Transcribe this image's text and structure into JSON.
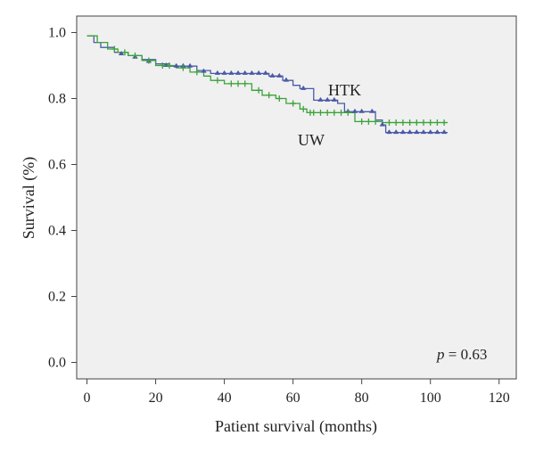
{
  "chart_data": {
    "type": "line",
    "subtype": "kaplan-meier",
    "xlabel": "Patient survival (months)",
    "ylabel": "Survival (%)",
    "xlim": [
      -3,
      125
    ],
    "ylim": [
      -0.05,
      1.05
    ],
    "xticks": [
      0,
      20,
      40,
      60,
      80,
      100,
      120
    ],
    "yticks": [
      0.0,
      0.2,
      0.4,
      0.6,
      0.8,
      1.0
    ],
    "xtick_labels": [
      "0",
      "20",
      "40",
      "60",
      "80",
      "100",
      "120"
    ],
    "ytick_labels": [
      "0.0",
      "0.2",
      "0.4",
      "0.6",
      "0.8",
      "1.0"
    ],
    "background": "#f0f0f0",
    "grid": false,
    "annotation": {
      "italic": "p",
      "text": " = 0.63"
    },
    "series": [
      {
        "name": "HTK",
        "color": "#4a5aa8",
        "censor_marker": "triangle",
        "steps": [
          [
            0,
            0.99
          ],
          [
            2,
            0.97
          ],
          [
            4,
            0.955
          ],
          [
            8,
            0.94
          ],
          [
            12,
            0.93
          ],
          [
            16,
            0.918
          ],
          [
            20,
            0.905
          ],
          [
            24,
            0.898
          ],
          [
            32,
            0.885
          ],
          [
            36,
            0.876
          ],
          [
            53,
            0.868
          ],
          [
            57,
            0.855
          ],
          [
            60,
            0.84
          ],
          [
            62,
            0.83
          ],
          [
            66,
            0.795
          ],
          [
            73,
            0.785
          ],
          [
            75,
            0.76
          ],
          [
            84,
            0.735
          ],
          [
            86,
            0.72
          ],
          [
            87,
            0.697
          ],
          [
            105,
            0.697
          ]
        ],
        "censored": [
          [
            10,
            0.935
          ],
          [
            14,
            0.925
          ],
          [
            18,
            0.912
          ],
          [
            23,
            0.9
          ],
          [
            26,
            0.898
          ],
          [
            28,
            0.898
          ],
          [
            30,
            0.898
          ],
          [
            34,
            0.882
          ],
          [
            38,
            0.876
          ],
          [
            40,
            0.876
          ],
          [
            42,
            0.876
          ],
          [
            44,
            0.876
          ],
          [
            46,
            0.876
          ],
          [
            48,
            0.876
          ],
          [
            50,
            0.876
          ],
          [
            52,
            0.876
          ],
          [
            54,
            0.868
          ],
          [
            56,
            0.868
          ],
          [
            58,
            0.855
          ],
          [
            63,
            0.83
          ],
          [
            68,
            0.795
          ],
          [
            70,
            0.795
          ],
          [
            72,
            0.795
          ],
          [
            76,
            0.76
          ],
          [
            78,
            0.76
          ],
          [
            80,
            0.76
          ],
          [
            83,
            0.76
          ],
          [
            86,
            0.72
          ],
          [
            88,
            0.697
          ],
          [
            90,
            0.697
          ],
          [
            92,
            0.697
          ],
          [
            94,
            0.697
          ],
          [
            96,
            0.697
          ],
          [
            98,
            0.697
          ],
          [
            100,
            0.697
          ],
          [
            102,
            0.697
          ],
          [
            104,
            0.697
          ]
        ]
      },
      {
        "name": "UW",
        "color": "#3aa33a",
        "censor_marker": "plus",
        "steps": [
          [
            0,
            0.99
          ],
          [
            3,
            0.97
          ],
          [
            6,
            0.95
          ],
          [
            9,
            0.94
          ],
          [
            12,
            0.93
          ],
          [
            16,
            0.915
          ],
          [
            20,
            0.9
          ],
          [
            26,
            0.893
          ],
          [
            30,
            0.88
          ],
          [
            34,
            0.868
          ],
          [
            36,
            0.855
          ],
          [
            40,
            0.845
          ],
          [
            48,
            0.825
          ],
          [
            51,
            0.81
          ],
          [
            55,
            0.8
          ],
          [
            58,
            0.785
          ],
          [
            62,
            0.768
          ],
          [
            64,
            0.757
          ],
          [
            78,
            0.73
          ],
          [
            86,
            0.727
          ],
          [
            105,
            0.727
          ]
        ],
        "censored": [
          [
            8,
            0.95
          ],
          [
            11,
            0.94
          ],
          [
            14,
            0.93
          ],
          [
            18,
            0.915
          ],
          [
            22,
            0.9
          ],
          [
            24,
            0.9
          ],
          [
            28,
            0.893
          ],
          [
            32,
            0.88
          ],
          [
            38,
            0.855
          ],
          [
            42,
            0.845
          ],
          [
            44,
            0.845
          ],
          [
            46,
            0.845
          ],
          [
            50,
            0.825
          ],
          [
            53,
            0.81
          ],
          [
            56,
            0.8
          ],
          [
            60,
            0.785
          ],
          [
            63,
            0.768
          ],
          [
            65,
            0.757
          ],
          [
            66,
            0.757
          ],
          [
            68,
            0.757
          ],
          [
            70,
            0.757
          ],
          [
            72,
            0.757
          ],
          [
            74,
            0.757
          ],
          [
            76,
            0.757
          ],
          [
            80,
            0.73
          ],
          [
            82,
            0.73
          ],
          [
            84,
            0.73
          ],
          [
            88,
            0.727
          ],
          [
            90,
            0.727
          ],
          [
            92,
            0.727
          ],
          [
            94,
            0.727
          ],
          [
            96,
            0.727
          ],
          [
            98,
            0.727
          ],
          [
            100,
            0.727
          ],
          [
            102,
            0.727
          ],
          [
            104,
            0.727
          ]
        ]
      }
    ]
  }
}
